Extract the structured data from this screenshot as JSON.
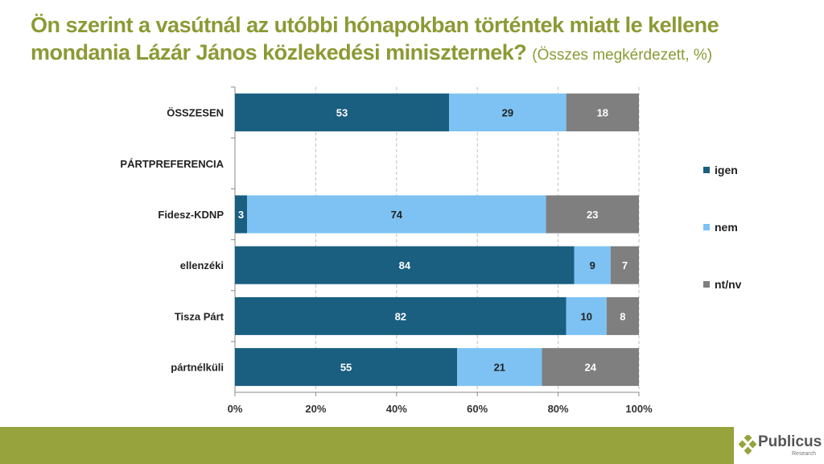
{
  "header": {
    "title": "Ön szerint a vasútnál az utóbbi hónapokban történtek miatt le kellene mondania Lázár János közlekedési miniszternek?",
    "subtitle": "(Összes megkérdezett, %)"
  },
  "chart_data": {
    "type": "bar",
    "orientation": "horizontal",
    "stacked": true,
    "categories": [
      "ÖSSZESEN",
      "PÁRTPREFERENCIA",
      "Fidesz-KDNP",
      "ellenzéki",
      "Tisza Párt",
      "pártnélküli"
    ],
    "series": [
      {
        "name": "igen",
        "color": "#1a5e80",
        "values": [
          53,
          null,
          3,
          84,
          82,
          55
        ]
      },
      {
        "name": "nem",
        "color": "#7dc2f3",
        "values": [
          29,
          null,
          74,
          9,
          10,
          21
        ]
      },
      {
        "name": "nt/nv",
        "color": "#7f7f7f",
        "values": [
          18,
          null,
          23,
          7,
          8,
          24
        ]
      }
    ],
    "xlim": [
      0,
      100
    ],
    "xticks": [
      "0%",
      "20%",
      "40%",
      "60%",
      "80%",
      "100%"
    ],
    "grid": true,
    "legend": "right"
  },
  "logo": {
    "name": "Publicus",
    "tagline": "Research"
  }
}
